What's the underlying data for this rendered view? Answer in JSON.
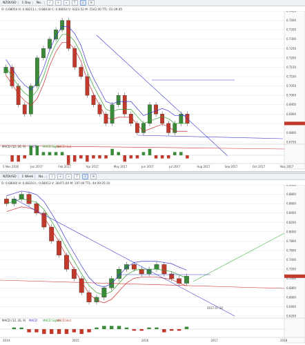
{
  "colors": {
    "up": "#3a8a3a",
    "down": "#c0392b",
    "bb": "#3a3ad0",
    "bb_lower": "#d02b2b",
    "ma": "#2e9e2e",
    "trend": "#3a3ad0",
    "support": "#d03030",
    "target": "#40b040",
    "grid": "#e6e6e6"
  },
  "top_panel": {
    "symbol": "NZDUSD",
    "timeframe": "1 Day",
    "toolbar_extra": "No..",
    "info": "O: 0.68054  H: 0.68211  L: 0.68034  C: 0.68054  V: 9323.52  M: 1542.00  TTL: 01:39:45",
    "indicator_label": "MACD (12, 26, 9)",
    "indicator_items": [
      "MACD",
      "MACD Signal",
      "MACD Hist"
    ],
    "price_labels": [
      "0.7450",
      "0.7400",
      "0.7350",
      "0.7300",
      "0.7250",
      "0.7200",
      "0.7150",
      "0.7100",
      "0.7050",
      "0.7000",
      "0.6950",
      "0.6900",
      "0.6850",
      "0.6800",
      "0.6750"
    ],
    "date_labels": [
      "5 Nov 2016",
      "Jan 2017",
      "Feb 2017",
      "Apr 2017",
      "May 2017",
      "Jun 2017",
      "Jul 2017",
      "Aug 2017",
      "Sep 2017",
      "Oct 2017",
      "Nov 2017"
    ]
  },
  "bottom_panel": {
    "symbol": "NZDUSD",
    "timeframe": "1 Week",
    "toolbar_extra": "No..",
    "info": "O: 0.68060  H: 0.68310  L: 0.68013  V: 30471.00  M: 197.00  TTL: 4d 09:35:10",
    "indicator_label": "MACD (12, 26, 9)",
    "indicator_items": [
      "MACD",
      "MACD Signal",
      "MACD Hist"
    ],
    "price_labels": [
      "0.9000",
      "0.8800",
      "0.8600",
      "0.8400",
      "0.8200",
      "0.8000",
      "0.7800",
      "0.7600",
      "0.7400",
      "0.7200",
      "0.7000",
      "0.6800",
      "0.6600",
      "0.6400",
      "0.6200"
    ],
    "date_labels": [
      "2014",
      "2015",
      "2016",
      "2017",
      "2018"
    ],
    "projection_label": "2017.07.10"
  },
  "chart_data": [
    {
      "type": "candlestick",
      "title": "NZDUSD 1 Day",
      "x_labels": [
        "5 Nov 2016",
        "Jan 2017",
        "Feb 2017",
        "Apr 2017",
        "May 2017",
        "Jun 2017",
        "Jul 2017",
        "Aug 2017"
      ],
      "close": [
        0.715,
        0.705,
        0.695,
        0.69,
        0.705,
        0.72,
        0.725,
        0.73,
        0.735,
        0.74,
        0.725,
        0.715,
        0.71,
        0.7,
        0.695,
        0.69,
        0.685,
        0.695,
        0.7,
        0.69,
        0.685,
        0.68,
        0.685,
        0.695,
        0.69,
        0.685,
        0.68,
        0.685,
        0.69,
        0.685
      ],
      "ylim": [
        0.675,
        0.745
      ]
    },
    {
      "type": "candlestick",
      "title": "NZDUSD 1 Week",
      "x_labels": [
        "2014",
        "2015",
        "2016",
        "2017",
        "2018"
      ],
      "close": [
        0.86,
        0.87,
        0.88,
        0.86,
        0.84,
        0.81,
        0.78,
        0.75,
        0.72,
        0.7,
        0.67,
        0.65,
        0.66,
        0.68,
        0.7,
        0.72,
        0.73,
        0.72,
        0.71,
        0.72,
        0.73,
        0.71,
        0.7,
        0.69,
        0.705
      ],
      "ylim": [
        0.62,
        0.9
      ]
    }
  ]
}
